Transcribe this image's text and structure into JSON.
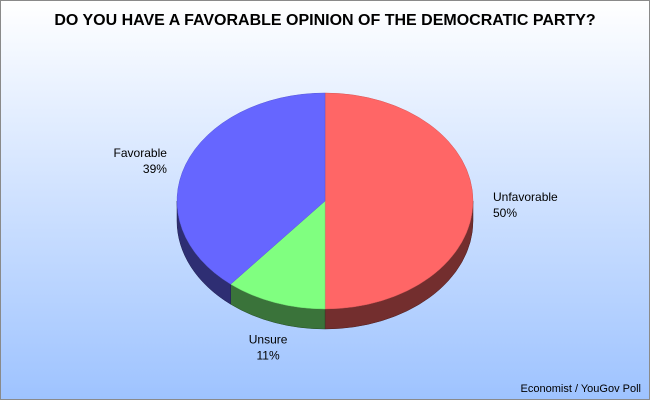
{
  "chart_data": {
    "type": "pie",
    "title": "DO YOU HAVE A FAVORABLE OPINION OF THE DEMOCRATIC PARTY?",
    "source": "Economist / YouGov Poll",
    "slices": [
      {
        "label": "Unfavorable",
        "value": 50,
        "value_label": "50%",
        "color": "#ff6666"
      },
      {
        "label": "Unsure",
        "value": 11,
        "value_label": "11%",
        "color": "#80ff80"
      },
      {
        "label": "Favorable",
        "value": 39,
        "value_label": "39%",
        "color": "#6666ff"
      }
    ],
    "start": "12 o'clock",
    "direction": "clockwise",
    "style": "3d",
    "legend": "none",
    "background": [
      "#ffffff",
      "#9ec3ff"
    ]
  }
}
